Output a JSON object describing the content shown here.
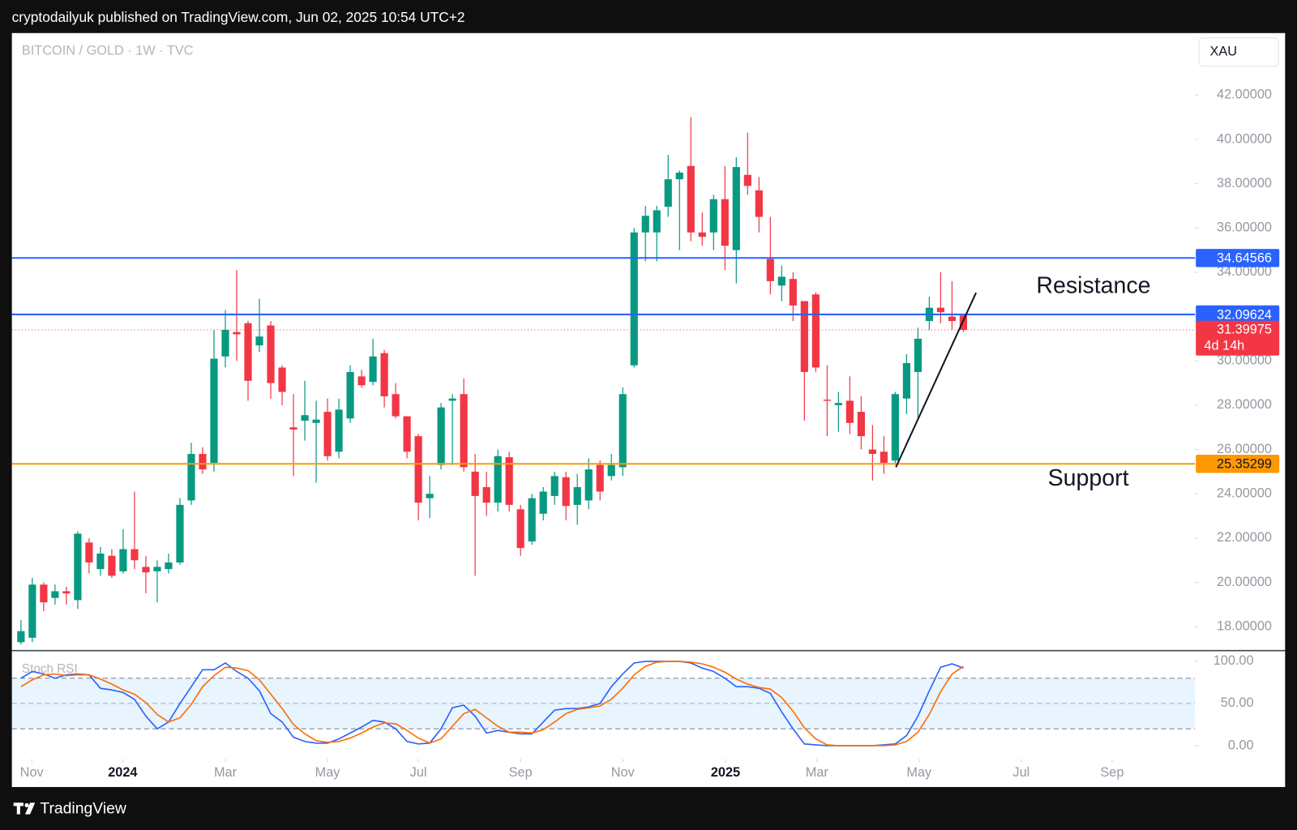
{
  "header": {
    "text": "cryptodailyuk published on TradingView.com, Jun 02, 2025 10:54 UTC+2"
  },
  "footer": {
    "brand": "TradingView"
  },
  "chart_data": [
    {
      "type": "candlestick",
      "title": "BITCOIN / GOLD · 1W · TVC",
      "currency": "XAU",
      "open": [
        17.3,
        17.5,
        19.9,
        19.3,
        19.6,
        19.2,
        21.8,
        20.6,
        21.2,
        20.5,
        21.5,
        20.7,
        20.5,
        20.6,
        20.9,
        23.7,
        25.8,
        25.4,
        30.2,
        31.3,
        31.7,
        30.7,
        31.6,
        29.7,
        27.0,
        27.3,
        27.2,
        27.7,
        25.9,
        27.4,
        29.3,
        29.05,
        30.35,
        28.5,
        27.5,
        26.6,
        23.8,
        25.3,
        28.2,
        28.5,
        25.0,
        24.3,
        23.6,
        25.65,
        23.3,
        21.85,
        23.1,
        23.9,
        24.75,
        23.5,
        23.7,
        25.3,
        24.8,
        25.2,
        29.8,
        35.8,
        35.8,
        36.96,
        38.2,
        38.8,
        35.8,
        35.8,
        37.3,
        35.0,
        38.4,
        37.7,
        34.6,
        33.4,
        33.7,
        32.7,
        33.0,
        28.25,
        28.0,
        28.2,
        27.7,
        26.0,
        25.9,
        25.5,
        28.3,
        29.5,
        31.8,
        32.4,
        32.0,
        32.05
      ],
      "high": [
        18.3,
        20.2,
        20.0,
        19.9,
        19.8,
        22.3,
        22.0,
        21.6,
        21.5,
        22.4,
        24.1,
        21.2,
        21.0,
        21.3,
        23.8,
        26.3,
        26.1,
        31.4,
        32.3,
        34.1,
        31.8,
        32.8,
        31.8,
        29.8,
        28.5,
        29.1,
        28.2,
        28.3,
        28.3,
        29.8,
        29.6,
        31.0,
        30.5,
        29.0,
        27.5,
        26.7,
        24.8,
        28.1,
        28.5,
        29.2,
        25.8,
        25.0,
        26.0,
        25.9,
        23.5,
        24.0,
        24.3,
        25.0,
        25.0,
        24.9,
        25.6,
        25.5,
        25.8,
        28.8,
        36.0,
        37.0,
        37.0,
        39.3,
        38.6,
        41.0,
        36.7,
        37.5,
        38.8,
        39.2,
        40.3,
        38.3,
        36.5,
        34.3,
        34.0,
        32.7,
        33.1,
        29.8,
        28.6,
        29.3,
        28.4,
        27.1,
        26.6,
        28.6,
        30.3,
        31.5,
        32.9,
        34.0,
        33.6,
        32.1
      ],
      "low": [
        17.2,
        17.3,
        18.7,
        19.0,
        19.0,
        18.8,
        20.4,
        20.3,
        20.2,
        20.4,
        20.6,
        19.5,
        19.1,
        20.4,
        20.8,
        23.5,
        24.9,
        25.0,
        29.7,
        30.0,
        28.2,
        30.4,
        28.3,
        28.0,
        24.8,
        26.4,
        24.5,
        25.5,
        25.6,
        27.2,
        28.8,
        28.9,
        27.9,
        27.4,
        25.6,
        22.8,
        22.9,
        25.1,
        25.3,
        25.0,
        20.3,
        23.0,
        23.2,
        23.2,
        21.2,
        21.7,
        22.8,
        23.5,
        22.8,
        22.6,
        23.3,
        23.7,
        24.6,
        24.8,
        29.7,
        34.5,
        34.5,
        36.5,
        35.0,
        35.4,
        35.2,
        35.0,
        34.1,
        33.5,
        37.5,
        35.8,
        33.0,
        32.7,
        31.8,
        27.3,
        29.5,
        26.6,
        26.8,
        26.7,
        26.0,
        24.6,
        24.9,
        25.3,
        27.6,
        27.4,
        31.4,
        31.7,
        31.4,
        31.3
      ],
      "close": [
        17.8,
        19.9,
        19.1,
        19.6,
        19.5,
        22.2,
        20.9,
        21.3,
        20.3,
        21.5,
        21.0,
        20.45,
        20.7,
        20.9,
        23.5,
        25.8,
        25.1,
        30.1,
        31.4,
        31.2,
        29.1,
        31.1,
        29.0,
        28.6,
        26.9,
        27.55,
        27.35,
        25.7,
        27.8,
        29.5,
        28.9,
        30.2,
        28.4,
        27.5,
        25.9,
        23.6,
        24.0,
        27.9,
        28.3,
        25.2,
        23.9,
        23.6,
        25.7,
        23.5,
        21.55,
        23.8,
        24.1,
        24.8,
        23.45,
        24.3,
        25.1,
        24.1,
        25.3,
        28.5,
        35.8,
        36.55,
        36.8,
        38.2,
        38.5,
        35.8,
        35.6,
        37.3,
        35.2,
        38.75,
        37.9,
        36.5,
        33.6,
        33.8,
        32.5,
        29.5,
        29.7,
        28.2,
        28.1,
        27.2,
        26.6,
        25.8,
        25.4,
        28.5,
        29.9,
        31.0,
        32.4,
        32.2,
        31.8,
        31.39975
      ],
      "up_color": "#089981",
      "down_color": "#f23645",
      "ylim": [
        16.92,
        44.8
      ],
      "yticks": [
        {
          "value": 18,
          "label": "18.00000"
        },
        {
          "value": 20,
          "label": "20.00000"
        },
        {
          "value": 22,
          "label": "22.00000"
        },
        {
          "value": 24,
          "label": "24.00000"
        },
        {
          "value": 26,
          "label": "26.00000"
        },
        {
          "value": 28,
          "label": "28.00000"
        },
        {
          "value": 30,
          "label": "30.00000"
        },
        {
          "value": 32,
          "label": "32.00000"
        },
        {
          "value": 34,
          "label": "34.00000"
        },
        {
          "value": 36,
          "label": "36.00000"
        },
        {
          "value": 38,
          "label": "38.00000"
        },
        {
          "value": 40,
          "label": "40.00000"
        },
        {
          "value": 42,
          "label": "42.00000"
        }
      ],
      "xlim": [
        -0.8,
        103.4
      ],
      "xticks": [
        {
          "value": 0.95,
          "label": "Nov"
        },
        {
          "value": 8.96,
          "label": "2024"
        },
        {
          "value": 18.0,
          "label": "Mar"
        },
        {
          "value": 27.0,
          "label": "May"
        },
        {
          "value": 35.0,
          "label": "Jul"
        },
        {
          "value": 44.0,
          "label": "Sep"
        },
        {
          "value": 53.0,
          "label": "Nov"
        },
        {
          "value": 62.05,
          "label": "2025"
        },
        {
          "value": 70.1,
          "label": "Mar"
        },
        {
          "value": 79.1,
          "label": "May"
        },
        {
          "value": 88.1,
          "label": "Jul"
        },
        {
          "value": 96.1,
          "label": "Sep"
        }
      ],
      "levels": [
        {
          "value": 34.64566,
          "color": "#2962ff"
        },
        {
          "value": 32.09624,
          "color": "#2962ff"
        },
        {
          "value": 25.35299,
          "color": "#ff9800"
        }
      ],
      "countdown": "4d 14h",
      "trendline": {
        "x": [
          77.06,
          84.12
        ],
        "y": [
          25.2,
          33.08
        ],
        "color": "#131722"
      },
      "annotations": [
        {
          "text": "Resistance"
        },
        {
          "text": "Support"
        }
      ]
    },
    {
      "type": "line",
      "title": "Stoch RSI",
      "series": [
        {
          "color": "#2962ff",
          "values": [
            80,
            88,
            85,
            80,
            84,
            85,
            84,
            68,
            66,
            63,
            55,
            35,
            20,
            28,
            50,
            70,
            90,
            90,
            98,
            88,
            80,
            65,
            38,
            28,
            10,
            5,
            3,
            3,
            8,
            15,
            22,
            30,
            28,
            20,
            5,
            2,
            3,
            20,
            45,
            48,
            35,
            15,
            18,
            16,
            14,
            14,
            28,
            42,
            44,
            44,
            46,
            50,
            70,
            85,
            98,
            100,
            100,
            100,
            100,
            98,
            92,
            88,
            80,
            70,
            70,
            68,
            62,
            40,
            20,
            2,
            1,
            0,
            0,
            0,
            0,
            0,
            1,
            2,
            12,
            35,
            65,
            93,
            97,
            92
          ]
        },
        {
          "color": "#ff6d00",
          "values": [
            70,
            78,
            84,
            85,
            83,
            84,
            84,
            79,
            73,
            66,
            61,
            51,
            37,
            28,
            33,
            49,
            70,
            83,
            93,
            92,
            89,
            78,
            61,
            44,
            25,
            14,
            6,
            4,
            5,
            9,
            15,
            22,
            27,
            26,
            18,
            9,
            3,
            8,
            23,
            38,
            43,
            33,
            23,
            16,
            16,
            15,
            19,
            28,
            38,
            43,
            45,
            47,
            55,
            68,
            84,
            94,
            99,
            100,
            100,
            99,
            97,
            93,
            87,
            79,
            73,
            69,
            67,
            57,
            41,
            21,
            8,
            1,
            0,
            0,
            0,
            0,
            0,
            1,
            5,
            16,
            37,
            64,
            85,
            94
          ]
        }
      ],
      "ylim": [
        -15.7,
        112.7
      ],
      "yticks": [
        {
          "value": 0,
          "label": "0.00"
        },
        {
          "value": 50,
          "label": "50.00"
        },
        {
          "value": 100,
          "label": "100.00"
        }
      ],
      "bands": [
        20,
        80
      ],
      "band_color": "#2196f3"
    }
  ]
}
